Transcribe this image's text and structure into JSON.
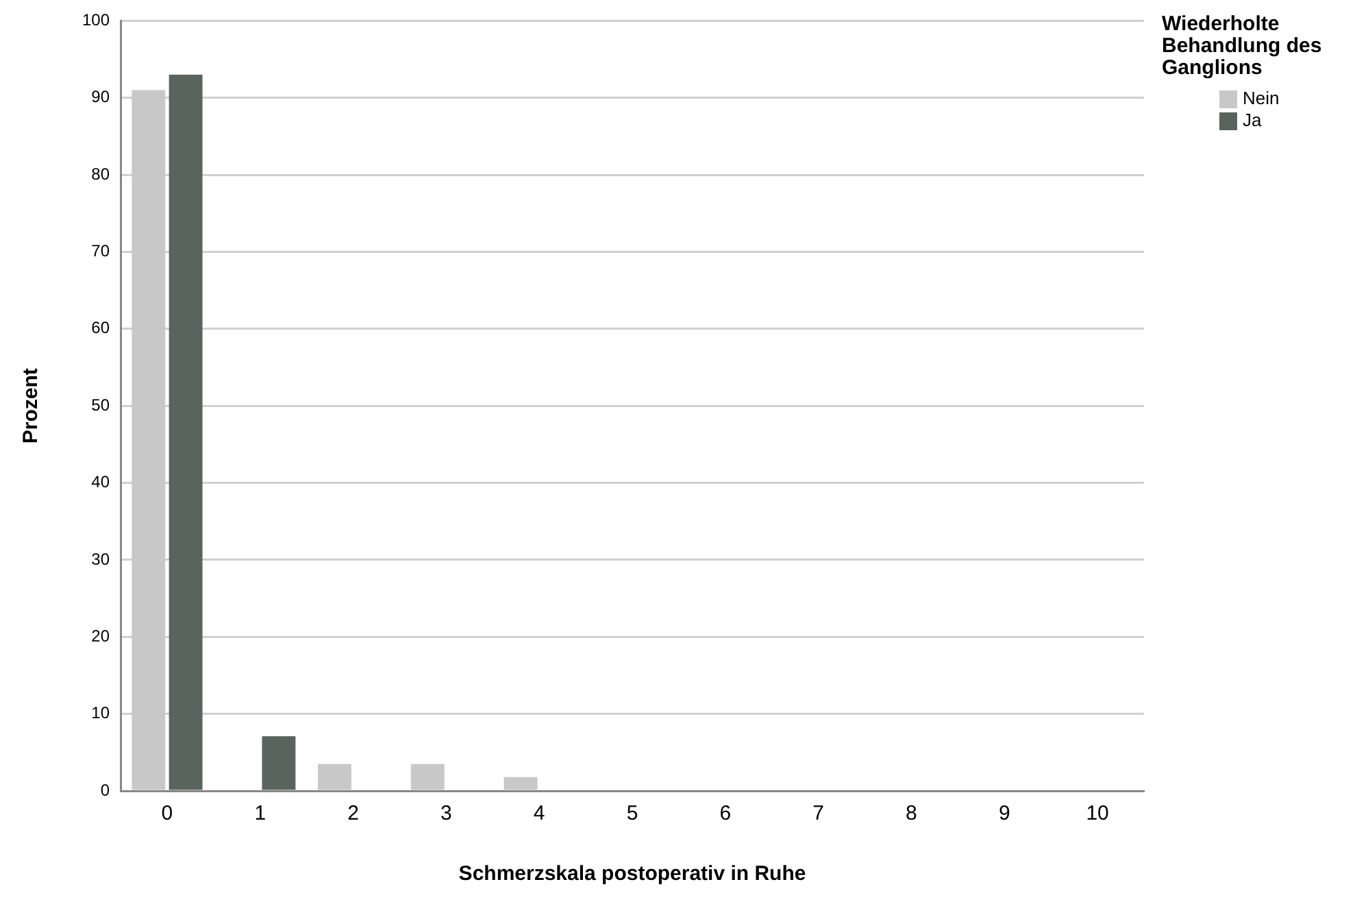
{
  "chart_data": {
    "type": "bar",
    "xlabel": "Schmerzskala postoperativ in Ruhe",
    "ylabel": "Prozent",
    "legend_title": "Wiederholte Behandlung des Ganglions",
    "categories": [
      "0",
      "1",
      "2",
      "3",
      "4",
      "5",
      "6",
      "7",
      "8",
      "9",
      "10"
    ],
    "series": [
      {
        "name": "Nein",
        "color": "#c8c8c8",
        "values": [
          91.0,
          0,
          3.5,
          3.5,
          1.8,
          0,
          0,
          0,
          0,
          0,
          0
        ]
      },
      {
        "name": "Ja",
        "color": "#5a645e",
        "values": [
          93.0,
          7.1,
          0,
          0,
          0,
          0,
          0,
          0,
          0,
          0,
          0
        ]
      }
    ],
    "ylim": [
      0,
      100
    ],
    "yticks": [
      0,
      10,
      20,
      30,
      40,
      50,
      60,
      70,
      80,
      90,
      100
    ],
    "grid": "y",
    "legend": "top right"
  }
}
